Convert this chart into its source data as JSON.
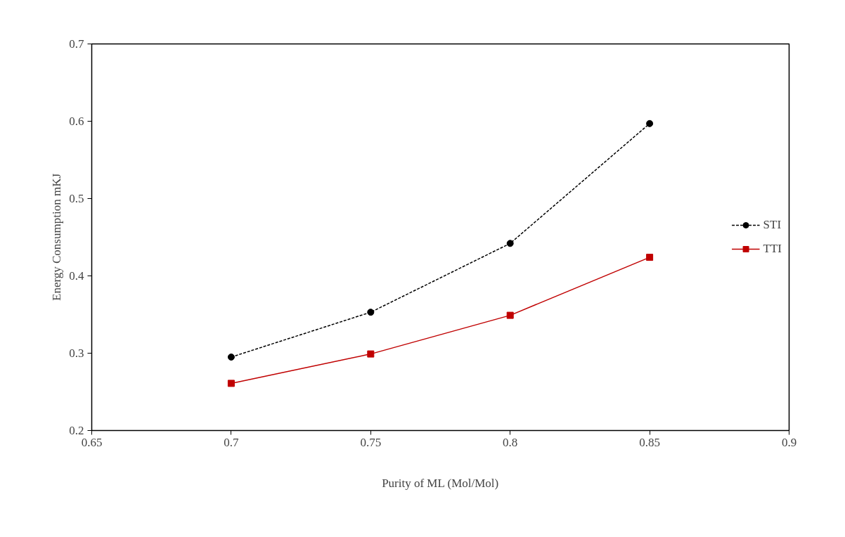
{
  "chart_data": {
    "type": "line",
    "xlabel": "Purity of ML (Mol/Mol)",
    "ylabel": "Energy Consumption mKJ",
    "x": [
      0.7,
      0.75,
      0.8,
      0.85
    ],
    "series": [
      {
        "name": "STI",
        "color": "#000000",
        "values": [
          0.295,
          0.353,
          0.442,
          0.597
        ],
        "marker": "circle",
        "line_style": "dashed"
      },
      {
        "name": "TTI",
        "color": "#c00000",
        "values": [
          0.261,
          0.299,
          0.349,
          0.424
        ],
        "marker": "square",
        "line_style": "solid"
      }
    ],
    "xlim": [
      0.65,
      0.9
    ],
    "xticks": [
      0.65,
      0.7,
      0.75,
      0.8,
      0.85,
      0.9
    ],
    "ylim": [
      0.2,
      0.7
    ],
    "yticks": [
      0.2,
      0.3,
      0.4,
      0.5,
      0.6,
      0.7
    ],
    "grid": false,
    "legend": "right"
  }
}
